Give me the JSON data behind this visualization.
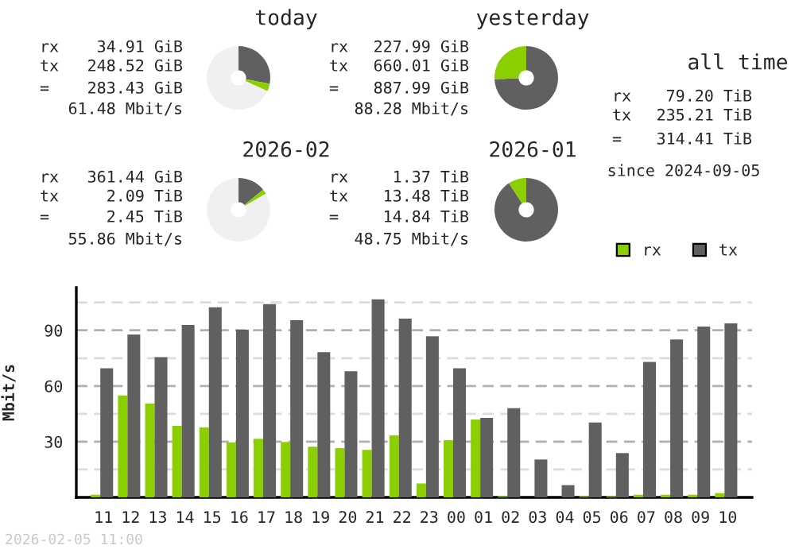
{
  "chart_data": [
    {
      "type": "donut",
      "title": "today",
      "categories": [
        null,
        null,
        null
      ],
      "values": [
        28.0,
        3.9,
        68.1
      ],
      "colors": [
        "#606060",
        "#8ccf00",
        "#f0f0f0"
      ],
      "annotations": [
        "rx",
        "34.91 GiB",
        "tx",
        "248.52 GiB",
        "=",
        "283.43 GiB",
        "61.48 Mbit/s"
      ]
    },
    {
      "type": "donut",
      "title": "yesterday",
      "categories": [
        null,
        null
      ],
      "values": [
        74.3,
        25.7
      ],
      "colors": [
        "#606060",
        "#8ccf00"
      ],
      "annotations": [
        "rx",
        "227.99 GiB",
        "tx",
        "660.01 GiB",
        "=",
        "887.99 GiB",
        "88.28 Mbit/s"
      ]
    },
    {
      "type": "donut",
      "title": "2026-02",
      "categories": [
        null,
        null,
        null
      ],
      "values": [
        14.1,
        2.4,
        83.5
      ],
      "colors": [
        "#606060",
        "#8ccf00",
        "#f0f0f0"
      ],
      "annotations": [
        "rx",
        "361.44 GiB",
        "tx",
        "2.09 TiB",
        "=",
        "2.45 TiB",
        "55.86 Mbit/s"
      ]
    },
    {
      "type": "donut",
      "title": "2026-01",
      "categories": [
        null,
        null
      ],
      "values": [
        90.8,
        9.2
      ],
      "colors": [
        "#606060",
        "#8ccf00"
      ],
      "annotations": [
        "rx",
        "1.37 TiB",
        "tx",
        "13.48 TiB",
        "=",
        "14.84 TiB",
        "48.75 Mbit/s"
      ]
    },
    {
      "type": "other",
      "title": "all time",
      "annotations": [
        "rx",
        "79.20 TiB",
        "tx",
        "235.21 TiB",
        "=",
        "314.41 TiB",
        "since 2024-09-05"
      ]
    },
    {
      "type": "bar",
      "ylabel": "Mbit/s",
      "categories": [
        "11",
        "12",
        "13",
        "14",
        "15",
        "16",
        "17",
        "18",
        "19",
        "20",
        "21",
        "22",
        "23",
        "00",
        "01",
        "02",
        "03",
        "04",
        "05",
        "06",
        "07",
        "08",
        "09",
        "10"
      ],
      "series": [
        {
          "name": "rx",
          "color": "#8ccf00",
          "values": [
            1.4,
            54.9,
            50.6,
            38.5,
            37.7,
            29.6,
            31.6,
            29.9,
            27.3,
            26.5,
            25.6,
            33.4,
            7.5,
            30.8,
            42.0,
            0.6,
            0,
            0,
            0.6,
            0.6,
            1.4,
            1.4,
            1.4,
            2.3
          ]
        },
        {
          "name": "tx",
          "color": "#606060",
          "values": [
            69.6,
            87.7,
            75.6,
            92.9,
            102.4,
            90.3,
            104.1,
            95.5,
            78.2,
            67.9,
            106.7,
            96.3,
            86.8,
            69.6,
            42.8,
            48.0,
            20.4,
            6.6,
            40.3,
            23.9,
            73.0,
            85.1,
            92.0,
            93.7
          ]
        }
      ],
      "ylim": [
        0,
        113
      ],
      "yticks": [
        {
          "value": 15,
          "label": null
        },
        30,
        {
          "value": 45,
          "label": null
        },
        60,
        {
          "value": 75,
          "label": null
        },
        90,
        {
          "value": 105,
          "label": null
        }
      ],
      "grid": "y",
      "legend": "top right",
      "annotations": [
        "2026-02-05 11:00"
      ]
    }
  ]
}
